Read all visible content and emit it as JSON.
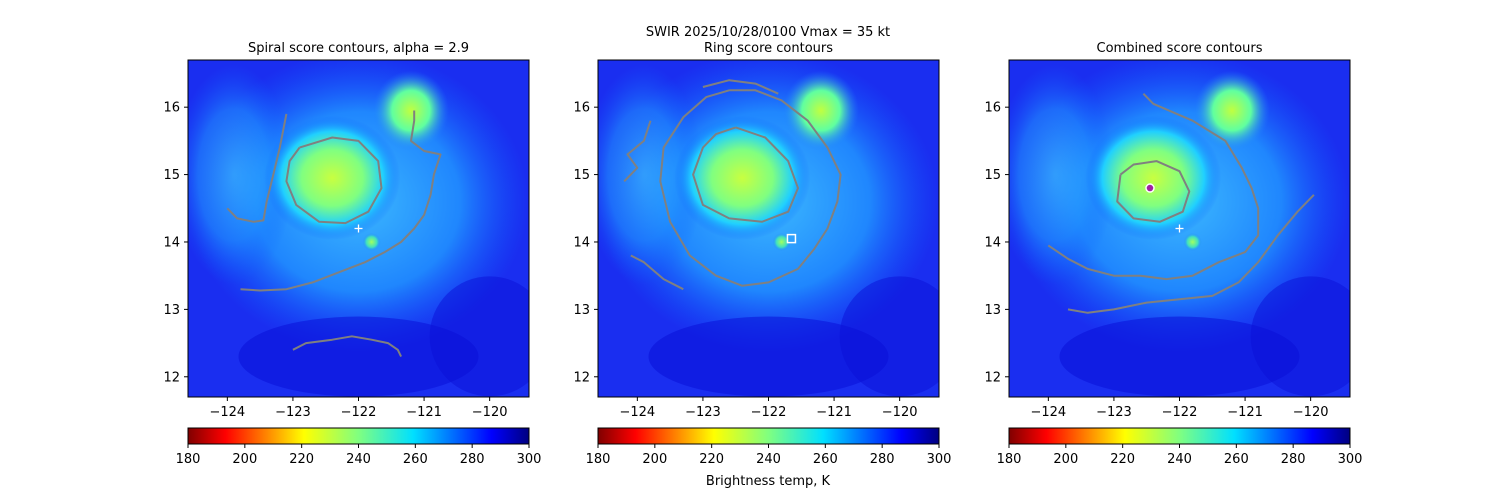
{
  "figure": {
    "suptitle_line1": "SWIR  2025/10/28/0100    Vmax = 35 kt",
    "colorbar_label": "Brightness temp, K"
  },
  "chart_data": [
    {
      "type": "heatmap",
      "title": "Spiral score contours, alpha =  2.9",
      "xlim": [
        -124.6,
        -119.4
      ],
      "ylim": [
        11.7,
        16.7
      ],
      "xticks": [
        -124,
        -123,
        -122,
        -121,
        -120
      ],
      "yticks": [
        12,
        13,
        14,
        15,
        16
      ],
      "colorbar": {
        "min": 180,
        "max": 300,
        "ticks": [
          180,
          200,
          220,
          240,
          260,
          280,
          300
        ],
        "colormap": "jet_r"
      },
      "markers": [
        {
          "symbol": "plus",
          "lon": -122.0,
          "lat": 14.2,
          "color": "#ffffff"
        }
      ],
      "contours": [
        {
          "color": "#808080",
          "points": [
            [
              -122.9,
              15.4
            ],
            [
              -122.4,
              15.55
            ],
            [
              -122.0,
              15.5
            ],
            [
              -121.7,
              15.2
            ],
            [
              -121.65,
              14.8
            ],
            [
              -121.85,
              14.45
            ],
            [
              -122.2,
              14.28
            ],
            [
              -122.6,
              14.3
            ],
            [
              -122.95,
              14.55
            ],
            [
              -123.1,
              14.9
            ],
            [
              -123.05,
              15.2
            ],
            [
              -122.9,
              15.4
            ]
          ]
        },
        {
          "color": "#808080",
          "points": [
            [
              -124.0,
              14.5
            ],
            [
              -123.85,
              14.35
            ],
            [
              -123.6,
              14.3
            ],
            [
              -123.45,
              14.32
            ],
            [
              -123.4,
              14.6
            ],
            [
              -123.3,
              15.0
            ],
            [
              -123.2,
              15.4
            ],
            [
              -123.1,
              15.9
            ]
          ]
        },
        {
          "color": "#808080",
          "points": [
            [
              -123.8,
              13.3
            ],
            [
              -123.5,
              13.28
            ],
            [
              -123.1,
              13.3
            ],
            [
              -122.7,
              13.4
            ],
            [
              -122.3,
              13.55
            ],
            [
              -121.9,
              13.7
            ],
            [
              -121.6,
              13.85
            ],
            [
              -121.35,
              14.0
            ],
            [
              -121.15,
              14.2
            ],
            [
              -121.0,
              14.4
            ],
            [
              -120.9,
              14.7
            ],
            [
              -120.85,
              15.0
            ],
            [
              -120.75,
              15.3
            ],
            [
              -121.0,
              15.35
            ],
            [
              -121.2,
              15.5
            ],
            [
              -121.15,
              15.8
            ],
            [
              -121.15,
              15.95
            ]
          ]
        },
        {
          "color": "#808080",
          "points": [
            [
              -123.0,
              12.4
            ],
            [
              -122.8,
              12.5
            ],
            [
              -122.4,
              12.55
            ],
            [
              -122.1,
              12.6
            ],
            [
              -121.8,
              12.55
            ],
            [
              -121.55,
              12.5
            ],
            [
              -121.4,
              12.4
            ],
            [
              -121.35,
              12.3
            ]
          ]
        }
      ]
    },
    {
      "type": "heatmap",
      "title": "Ring score contours",
      "xlim": [
        -124.6,
        -119.4
      ],
      "ylim": [
        11.7,
        16.7
      ],
      "xticks": [
        -124,
        -123,
        -122,
        -121,
        -120
      ],
      "yticks": [
        12,
        13,
        14,
        15,
        16
      ],
      "colorbar": {
        "min": 180,
        "max": 300,
        "ticks": [
          180,
          200,
          220,
          240,
          260,
          280,
          300
        ],
        "colormap": "jet_r"
      },
      "markers": [
        {
          "symbol": "square",
          "lon": -121.65,
          "lat": 14.05,
          "color": "#ffffff"
        }
      ],
      "contours": [
        {
          "color": "#808080",
          "points": [
            [
              -122.6,
              16.25
            ],
            [
              -122.2,
              16.25
            ],
            [
              -121.8,
              16.1
            ],
            [
              -121.4,
              15.8
            ],
            [
              -121.1,
              15.4
            ],
            [
              -120.9,
              15.0
            ],
            [
              -120.95,
              14.6
            ],
            [
              -121.1,
              14.2
            ],
            [
              -121.3,
              13.9
            ],
            [
              -121.55,
              13.6
            ],
            [
              -122.0,
              13.4
            ],
            [
              -122.4,
              13.35
            ],
            [
              -122.8,
              13.5
            ],
            [
              -123.2,
              13.8
            ],
            [
              -123.5,
              14.3
            ],
            [
              -123.65,
              14.9
            ],
            [
              -123.6,
              15.4
            ],
            [
              -123.3,
              15.85
            ],
            [
              -122.95,
              16.15
            ],
            [
              -122.6,
              16.25
            ]
          ]
        },
        {
          "color": "#808080",
          "points": [
            [
              -122.5,
              15.7
            ],
            [
              -122.05,
              15.55
            ],
            [
              -121.7,
              15.2
            ],
            [
              -121.55,
              14.8
            ],
            [
              -121.7,
              14.45
            ],
            [
              -122.1,
              14.3
            ],
            [
              -122.6,
              14.35
            ],
            [
              -123.0,
              14.55
            ],
            [
              -123.15,
              15.0
            ],
            [
              -123.0,
              15.4
            ],
            [
              -122.8,
              15.6
            ],
            [
              -122.5,
              15.7
            ]
          ]
        },
        {
          "color": "#808080",
          "points": [
            [
              -124.2,
              14.9
            ],
            [
              -124.0,
              15.1
            ],
            [
              -124.15,
              15.3
            ],
            [
              -123.9,
              15.5
            ],
            [
              -123.8,
              15.8
            ]
          ]
        },
        {
          "color": "#808080",
          "points": [
            [
              -124.1,
              13.8
            ],
            [
              -123.9,
              13.7
            ],
            [
              -123.6,
              13.45
            ],
            [
              -123.3,
              13.3
            ]
          ]
        },
        {
          "color": "#808080",
          "points": [
            [
              -123.0,
              16.3
            ],
            [
              -122.6,
              16.4
            ],
            [
              -122.2,
              16.35
            ],
            [
              -121.85,
              16.2
            ]
          ]
        }
      ]
    },
    {
      "type": "heatmap",
      "title": "Combined score contours",
      "xlim": [
        -124.6,
        -119.4
      ],
      "ylim": [
        11.7,
        16.7
      ],
      "xticks": [
        -124,
        -123,
        -122,
        -121,
        -120
      ],
      "yticks": [
        12,
        13,
        14,
        15,
        16
      ],
      "colorbar": {
        "min": 180,
        "max": 300,
        "ticks": [
          180,
          200,
          220,
          240,
          260,
          280,
          300
        ],
        "colormap": "jet_r"
      },
      "markers": [
        {
          "symbol": "plus",
          "lon": -122.0,
          "lat": 14.2,
          "color": "#ffffff"
        },
        {
          "symbol": "circle",
          "lon": -122.45,
          "lat": 14.8,
          "color": "#a020a0"
        }
      ],
      "contours": [
        {
          "color": "#808080",
          "points": [
            [
              -122.9,
              15.0
            ],
            [
              -122.7,
              15.15
            ],
            [
              -122.35,
              15.2
            ],
            [
              -122.0,
              15.05
            ],
            [
              -121.85,
              14.75
            ],
            [
              -121.95,
              14.45
            ],
            [
              -122.3,
              14.3
            ],
            [
              -122.7,
              14.35
            ],
            [
              -122.95,
              14.6
            ],
            [
              -122.9,
              15.0
            ]
          ]
        },
        {
          "color": "#808080",
          "points": [
            [
              -124.0,
              13.95
            ],
            [
              -123.7,
              13.75
            ],
            [
              -123.4,
              13.6
            ],
            [
              -123.0,
              13.5
            ],
            [
              -122.6,
              13.5
            ],
            [
              -122.2,
              13.45
            ],
            [
              -121.8,
              13.5
            ],
            [
              -121.4,
              13.7
            ],
            [
              -121.0,
              13.85
            ],
            [
              -120.8,
              14.1
            ],
            [
              -120.8,
              14.5
            ],
            [
              -120.9,
              14.8
            ],
            [
              -121.05,
              15.1
            ],
            [
              -121.3,
              15.5
            ],
            [
              -121.8,
              15.8
            ],
            [
              -122.4,
              16.05
            ],
            [
              -122.55,
              16.2
            ]
          ]
        },
        {
          "color": "#808080",
          "points": [
            [
              -123.7,
              13.0
            ],
            [
              -123.4,
              12.95
            ],
            [
              -123.0,
              13.0
            ],
            [
              -122.5,
              13.1
            ],
            [
              -122.0,
              13.15
            ],
            [
              -121.5,
              13.2
            ],
            [
              -121.1,
              13.4
            ],
            [
              -120.8,
              13.7
            ],
            [
              -120.5,
              14.1
            ],
            [
              -120.2,
              14.45
            ],
            [
              -119.95,
              14.7
            ]
          ]
        }
      ]
    }
  ]
}
